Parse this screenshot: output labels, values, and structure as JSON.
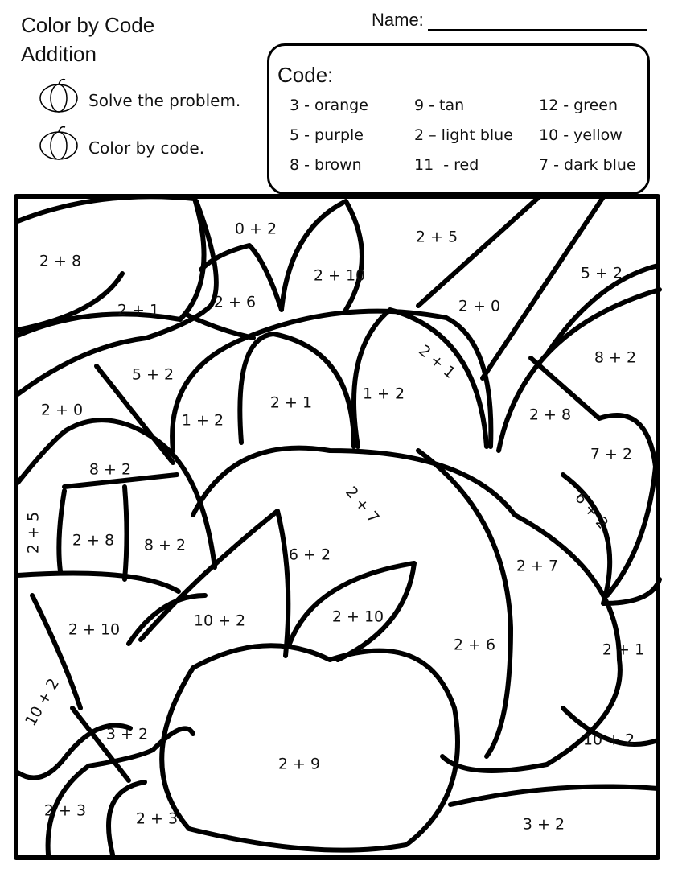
{
  "header": {
    "title": [
      "Color by Code",
      "Addition"
    ],
    "name_label": "Name:"
  },
  "instructions": [
    "Solve the problem.",
    "Color by code."
  ],
  "code": {
    "title": "Code:",
    "entries": [
      "3 - orange",
      "9 - tan",
      "12 - green",
      "5 - purple",
      "2 – light blue",
      "10 - yellow",
      "8 - brown",
      "11  - red",
      "7 - dark blue"
    ]
  },
  "problems": [
    "2 + 8",
    "0 + 2",
    "2 + 5",
    "2 + 10",
    "5 + 2",
    "2 + 1",
    "2 + 6",
    "2 + 0",
    "2 + 1",
    "8 + 2",
    "5 + 2",
    "2 + 0",
    "2 + 1",
    "1 + 2",
    "1 + 2",
    "2 + 8",
    "8 + 2",
    "7 + 2",
    "2 + 7",
    "6 + 2",
    "2 + 5",
    "2 + 8",
    "8 + 2",
    "6 + 2",
    "2 + 7",
    "10 + 2",
    "2 + 10",
    "2 + 10",
    "2 + 6",
    "2 + 1",
    "10 + 2",
    "3 + 2",
    "10 + 2",
    "2 + 9",
    "2 + 3",
    "2 + 3",
    "3 + 2"
  ]
}
